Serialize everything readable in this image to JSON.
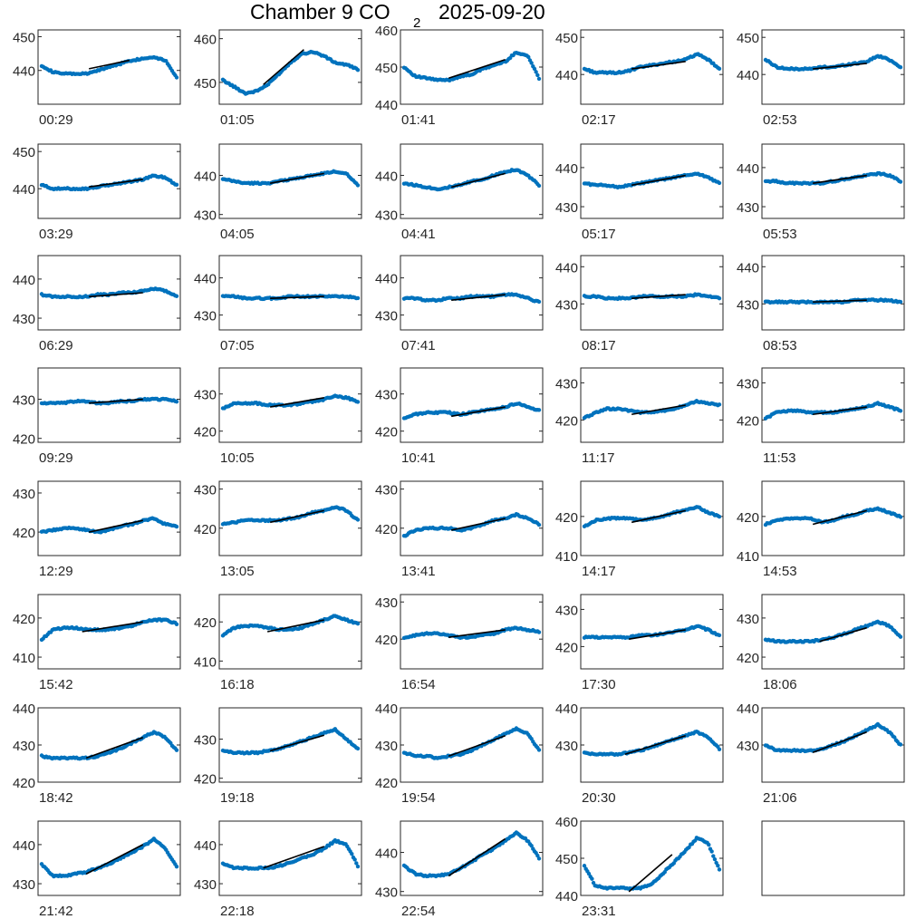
{
  "title": {
    "main": "Chamber 9 CO",
    "sub": "2",
    "date": "2025-09-20"
  },
  "colors": {
    "points": "#0072BD",
    "fit": "#000000",
    "axes": "#262626"
  },
  "chart_data": [
    {
      "type": "scatter",
      "label": "00:29",
      "ylim": [
        430,
        452
      ],
      "yticks": [
        440,
        450
      ],
      "shape": [
        441.5,
        439.5,
        439,
        439,
        439,
        440,
        441,
        442,
        443,
        443.5,
        444,
        443,
        438
      ],
      "fit": [
        [
          0.35,
          440.5
        ],
        [
          0.65,
          443
        ]
      ]
    },
    {
      "type": "scatter",
      "label": "01:05",
      "ylim": [
        445,
        462
      ],
      "yticks": [
        450,
        460
      ],
      "shape": [
        450.5,
        449,
        447.5,
        448,
        449.5,
        452,
        454.5,
        456.5,
        457,
        456,
        454.5,
        454,
        453
      ],
      "fit": [
        [
          0.3,
          449.5
        ],
        [
          0.6,
          457.5
        ]
      ]
    },
    {
      "type": "scatter",
      "label": "01:41",
      "ylim": [
        440,
        460
      ],
      "yticks": [
        440,
        450,
        460
      ],
      "shape": [
        450,
        447.5,
        447,
        446.5,
        446.5,
        447.5,
        448,
        449.5,
        450.5,
        451.5,
        454,
        453,
        447
      ],
      "fit": [
        [
          0.33,
          447
        ],
        [
          0.75,
          452
        ]
      ]
    },
    {
      "type": "scatter",
      "label": "02:17",
      "ylim": [
        432,
        452
      ],
      "yticks": [
        440,
        450
      ],
      "shape": [
        441.5,
        440.5,
        440.5,
        440.5,
        441,
        442,
        442.5,
        443,
        443.5,
        444,
        445.5,
        444,
        441.5
      ],
      "fit": [
        [
          0.35,
          441.5
        ],
        [
          0.75,
          443.5
        ]
      ]
    },
    {
      "type": "scatter",
      "label": "02:53",
      "ylim": [
        432,
        452
      ],
      "yticks": [
        440,
        450
      ],
      "shape": [
        444,
        442,
        441.5,
        441.5,
        441.5,
        442,
        442,
        442.5,
        443,
        443.5,
        445,
        444,
        442
      ],
      "fit": [
        [
          0.35,
          441.5
        ],
        [
          0.75,
          443
        ]
      ]
    },
    {
      "type": "scatter",
      "label": "03:29",
      "ylim": [
        432,
        452
      ],
      "yticks": [
        440,
        450
      ],
      "shape": [
        441,
        440,
        440,
        440,
        440,
        440.5,
        441,
        441.5,
        442,
        442.5,
        443.5,
        443,
        441
      ],
      "fit": [
        [
          0.35,
          440.5
        ],
        [
          0.75,
          442.5
        ]
      ]
    },
    {
      "type": "scatter",
      "label": "04:05",
      "ylim": [
        429,
        448
      ],
      "yticks": [
        430,
        440
      ],
      "shape": [
        439,
        438.5,
        438,
        438,
        438,
        438.5,
        439,
        439.5,
        440,
        440.5,
        441,
        440.5,
        437.5
      ],
      "fit": [
        [
          0.35,
          438
        ],
        [
          0.75,
          440.5
        ]
      ]
    },
    {
      "type": "scatter",
      "label": "04:41",
      "ylim": [
        429,
        448
      ],
      "yticks": [
        430,
        440
      ],
      "shape": [
        438,
        437.5,
        437,
        436.5,
        437,
        437.5,
        438.5,
        439,
        440,
        441,
        441.5,
        440,
        437.5
      ],
      "fit": [
        [
          0.35,
          437
        ],
        [
          0.75,
          440.5
        ]
      ]
    },
    {
      "type": "scatter",
      "label": "05:17",
      "ylim": [
        427,
        446
      ],
      "yticks": [
        430,
        440
      ],
      "shape": [
        436,
        435.5,
        435.5,
        435,
        435.5,
        436,
        436.5,
        437,
        437.5,
        438,
        438.5,
        437.5,
        436
      ],
      "fit": [
        [
          0.35,
          435.5
        ],
        [
          0.75,
          438
        ]
      ]
    },
    {
      "type": "scatter",
      "label": "05:53",
      "ylim": [
        427,
        446
      ],
      "yticks": [
        430,
        440
      ],
      "shape": [
        436.5,
        436.5,
        436,
        436,
        436,
        436,
        436.5,
        437,
        437.5,
        438,
        438.5,
        438,
        436.5
      ],
      "fit": [
        [
          0.35,
          436
        ],
        [
          0.75,
          438
        ]
      ]
    },
    {
      "type": "scatter",
      "label": "06:29",
      "ylim": [
        427,
        446
      ],
      "yticks": [
        430,
        440
      ],
      "shape": [
        436,
        435.5,
        435.5,
        435.5,
        435.5,
        436,
        436,
        436.5,
        436.5,
        437,
        437.5,
        437,
        435.5
      ],
      "fit": [
        [
          0.35,
          435.5
        ],
        [
          0.75,
          436.5
        ]
      ]
    },
    {
      "type": "scatter",
      "label": "07:05",
      "ylim": [
        426,
        446
      ],
      "yticks": [
        430,
        440
      ],
      "shape": [
        435,
        435,
        434.5,
        434.5,
        434.5,
        434.5,
        435,
        435,
        435,
        435,
        435,
        435,
        434.5
      ],
      "fit": [
        [
          0.35,
          434.5
        ],
        [
          0.75,
          435
        ]
      ]
    },
    {
      "type": "scatter",
      "label": "07:41",
      "ylim": [
        426,
        446
      ],
      "yticks": [
        430,
        440
      ],
      "shape": [
        434.5,
        434.5,
        434,
        434,
        434.5,
        434.5,
        435,
        435,
        435,
        435.5,
        435.5,
        434.5,
        433.5
      ],
      "fit": [
        [
          0.35,
          434
        ],
        [
          0.75,
          435.5
        ]
      ]
    },
    {
      "type": "scatter",
      "label": "08:17",
      "ylim": [
        423,
        443
      ],
      "yticks": [
        430,
        440
      ],
      "shape": [
        432,
        432,
        431.5,
        431.5,
        431.5,
        432,
        432,
        432,
        432,
        432,
        432.5,
        432,
        431.5
      ],
      "fit": [
        [
          0.35,
          431.5
        ],
        [
          0.75,
          432.5
        ]
      ]
    },
    {
      "type": "scatter",
      "label": "08:53",
      "ylim": [
        423,
        443
      ],
      "yticks": [
        430,
        440
      ],
      "shape": [
        430.5,
        430.5,
        430.5,
        430.5,
        430.5,
        430.5,
        430.5,
        430.5,
        431,
        431,
        431,
        431,
        430.5
      ],
      "fit": [
        [
          0.35,
          430.5
        ],
        [
          0.75,
          431
        ]
      ]
    },
    {
      "type": "scatter",
      "label": "09:29",
      "ylim": [
        419,
        438
      ],
      "yticks": [
        420,
        430
      ],
      "shape": [
        429,
        429,
        429,
        429.5,
        429.5,
        429,
        429,
        429.5,
        429.5,
        430,
        430,
        430,
        429.5
      ],
      "fit": [
        [
          0.35,
          429
        ],
        [
          0.75,
          430
        ]
      ]
    },
    {
      "type": "scatter",
      "label": "10:05",
      "ylim": [
        417,
        437
      ],
      "yticks": [
        420,
        430
      ],
      "shape": [
        426,
        427.5,
        427.5,
        427.5,
        427,
        427,
        427,
        427.5,
        428,
        428.5,
        429.5,
        429,
        428
      ],
      "fit": [
        [
          0.35,
          426.5
        ],
        [
          0.75,
          429
        ]
      ]
    },
    {
      "type": "scatter",
      "label": "10:41",
      "ylim": [
        417,
        437
      ],
      "yticks": [
        420,
        430
      ],
      "shape": [
        423.5,
        424.5,
        425,
        425,
        425,
        424.5,
        425,
        425.5,
        426,
        426.5,
        427.5,
        426.5,
        425.5
      ],
      "fit": [
        [
          0.35,
          424
        ],
        [
          0.75,
          426.5
        ]
      ]
    },
    {
      "type": "scatter",
      "label": "11:17",
      "ylim": [
        414,
        434
      ],
      "yticks": [
        420,
        430
      ],
      "shape": [
        420.5,
        422,
        423,
        423,
        422.5,
        422,
        422,
        422.5,
        423,
        424,
        425,
        424.5,
        424
      ],
      "fit": [
        [
          0.35,
          421.5
        ],
        [
          0.75,
          424
        ]
      ]
    },
    {
      "type": "scatter",
      "label": "11:53",
      "ylim": [
        414,
        434
      ],
      "yticks": [
        420,
        430
      ],
      "shape": [
        420.5,
        422,
        422.5,
        422.5,
        422,
        422,
        422,
        422.5,
        423,
        423.5,
        424.5,
        423.5,
        422.5
      ],
      "fit": [
        [
          0.35,
          421.5
        ],
        [
          0.75,
          423.5
        ]
      ]
    },
    {
      "type": "scatter",
      "label": "12:29",
      "ylim": [
        414,
        433
      ],
      "yticks": [
        420,
        430
      ],
      "shape": [
        420,
        420.5,
        421,
        421,
        420.5,
        420,
        420.5,
        421.5,
        422,
        423,
        423.5,
        422,
        421.5
      ],
      "fit": [
        [
          0.35,
          420
        ],
        [
          0.75,
          423
        ]
      ]
    },
    {
      "type": "scatter",
      "label": "13:05",
      "ylim": [
        413,
        432
      ],
      "yticks": [
        420,
        430
      ],
      "shape": [
        421,
        421.5,
        422,
        422,
        422,
        422,
        422.5,
        423,
        424,
        424.5,
        425.5,
        424.5,
        422
      ],
      "fit": [
        [
          0.35,
          421.5
        ],
        [
          0.75,
          424.5
        ]
      ]
    },
    {
      "type": "scatter",
      "label": "13:41",
      "ylim": [
        413,
        432
      ],
      "yticks": [
        420,
        430
      ],
      "shape": [
        418,
        419.5,
        420,
        420,
        420,
        419.5,
        420,
        421,
        422,
        422.5,
        423.5,
        422.5,
        421
      ],
      "fit": [
        [
          0.35,
          419.5
        ],
        [
          0.75,
          422.5
        ]
      ]
    },
    {
      "type": "scatter",
      "label": "14:17",
      "ylim": [
        410,
        429
      ],
      "yticks": [
        410,
        420
      ],
      "shape": [
        417.5,
        419,
        419.5,
        419.5,
        419.5,
        419,
        419.5,
        420,
        421,
        421.5,
        422.5,
        421,
        420
      ],
      "fit": [
        [
          0.35,
          418.5
        ],
        [
          0.75,
          421.5
        ]
      ]
    },
    {
      "type": "scatter",
      "label": "14:53",
      "ylim": [
        410,
        429
      ],
      "yticks": [
        410,
        420
      ],
      "shape": [
        418,
        419,
        419.5,
        419.5,
        419.5,
        418.5,
        419,
        420,
        420.5,
        421.5,
        422,
        421,
        420
      ],
      "fit": [
        [
          0.35,
          418
        ],
        [
          0.75,
          421.5
        ]
      ]
    },
    {
      "type": "scatter",
      "label": "15:42",
      "ylim": [
        407,
        426
      ],
      "yticks": [
        410,
        420
      ],
      "shape": [
        414.5,
        417,
        417.5,
        417.5,
        417,
        417,
        417,
        417.5,
        418,
        419,
        419.5,
        419.5,
        418.5
      ],
      "fit": [
        [
          0.3,
          416.5
        ],
        [
          0.75,
          419
        ]
      ]
    },
    {
      "type": "scatter",
      "label": "16:18",
      "ylim": [
        408,
        427
      ],
      "yticks": [
        410,
        420
      ],
      "shape": [
        416.5,
        418.5,
        419,
        419,
        418.5,
        418,
        418,
        418.5,
        419.5,
        420.5,
        421.5,
        420.5,
        419.5
      ],
      "fit": [
        [
          0.33,
          417.5
        ],
        [
          0.75,
          420.5
        ]
      ]
    },
    {
      "type": "scatter",
      "label": "16:54",
      "ylim": [
        412,
        432
      ],
      "yticks": [
        420,
        430
      ],
      "shape": [
        420.5,
        421,
        421.5,
        421.5,
        421,
        420.5,
        420.5,
        421,
        421.5,
        422.5,
        423,
        422.5,
        422
      ],
      "fit": [
        [
          0.33,
          420.5
        ],
        [
          0.75,
          422.5
        ]
      ]
    },
    {
      "type": "scatter",
      "label": "17:30",
      "ylim": [
        414,
        434
      ],
      "yticks": [
        420,
        430
      ],
      "shape": [
        422.5,
        422.5,
        422.5,
        422.5,
        422.5,
        423,
        423,
        423.5,
        424,
        424.5,
        425.5,
        424.5,
        423
      ],
      "fit": [
        [
          0.33,
          422
        ],
        [
          0.75,
          424.5
        ]
      ]
    },
    {
      "type": "scatter",
      "label": "18:06",
      "ylim": [
        417,
        436
      ],
      "yticks": [
        420,
        430
      ],
      "shape": [
        424.5,
        424,
        424,
        424,
        424,
        424.5,
        425,
        426,
        427,
        428,
        429,
        428,
        425
      ],
      "fit": [
        [
          0.4,
          424
        ],
        [
          0.75,
          427.5
        ]
      ]
    },
    {
      "type": "scatter",
      "label": "18:42",
      "ylim": [
        420,
        440
      ],
      "yticks": [
        420,
        430,
        440
      ],
      "shape": [
        427,
        426.5,
        426.5,
        426.5,
        426.5,
        427,
        428,
        429,
        430.5,
        432,
        433.5,
        432,
        428.5
      ],
      "fit": [
        [
          0.33,
          426.5
        ],
        [
          0.75,
          432
        ]
      ]
    },
    {
      "type": "scatter",
      "label": "19:18",
      "ylim": [
        419,
        438
      ],
      "yticks": [
        420,
        430
      ],
      "shape": [
        427,
        426.5,
        426.5,
        426.5,
        427,
        427.5,
        428.5,
        429.5,
        430.5,
        431.5,
        432.5,
        430,
        427.5
      ],
      "fit": [
        [
          0.35,
          427
        ],
        [
          0.75,
          431
        ]
      ]
    },
    {
      "type": "scatter",
      "label": "19:54",
      "ylim": [
        420,
        440
      ],
      "yticks": [
        420,
        430,
        440
      ],
      "shape": [
        428,
        427,
        427,
        426.5,
        427,
        427.5,
        428.5,
        430,
        431.5,
        433,
        434.5,
        433,
        428.5
      ],
      "fit": [
        [
          0.33,
          427
        ],
        [
          0.75,
          432.5
        ]
      ]
    },
    {
      "type": "scatter",
      "label": "20:30",
      "ylim": [
        420,
        440
      ],
      "yticks": [
        430,
        440
      ],
      "shape": [
        428,
        427.5,
        427.5,
        427.5,
        428,
        428.5,
        429.5,
        430.5,
        431.5,
        432.5,
        433.5,
        432,
        429
      ],
      "fit": [
        [
          0.3,
          427.5
        ],
        [
          0.75,
          432.5
        ]
      ]
    },
    {
      "type": "scatter",
      "label": "21:06",
      "ylim": [
        420,
        440
      ],
      "yticks": [
        430,
        440
      ],
      "shape": [
        430,
        428.5,
        428.5,
        428.5,
        428.5,
        429,
        430,
        431,
        432.5,
        434,
        435.5,
        433.5,
        430
      ],
      "fit": [
        [
          0.35,
          428
        ],
        [
          0.75,
          433.5
        ]
      ]
    },
    {
      "type": "scatter",
      "label": "21:42",
      "ylim": [
        427,
        446
      ],
      "yticks": [
        430,
        440
      ],
      "shape": [
        435,
        432,
        432,
        432.5,
        433,
        434,
        435,
        436.5,
        438,
        439.5,
        441.5,
        439,
        434.5
      ],
      "fit": [
        [
          0.33,
          432.5
        ],
        [
          0.75,
          440
        ]
      ]
    },
    {
      "type": "scatter",
      "label": "22:18",
      "ylim": [
        427,
        446
      ],
      "yticks": [
        430,
        440
      ],
      "shape": [
        435,
        434,
        434,
        434,
        434,
        434.5,
        435.5,
        436.5,
        437.5,
        439,
        441,
        440,
        434.5
      ],
      "fit": [
        [
          0.3,
          434
        ],
        [
          0.75,
          439.5
        ]
      ]
    },
    {
      "type": "scatter",
      "label": "22:54",
      "ylim": [
        429,
        448
      ],
      "yticks": [
        430,
        440
      ],
      "shape": [
        436.5,
        434.5,
        434,
        434,
        434.5,
        436,
        437.5,
        439.5,
        441,
        443,
        445,
        443,
        438.5
      ],
      "fit": [
        [
          0.33,
          434
        ],
        [
          0.75,
          443.5
        ]
      ]
    },
    {
      "type": "scatter",
      "label": "23:31",
      "ylim": [
        440,
        460
      ],
      "yticks": [
        440,
        450,
        460
      ],
      "shape": [
        448,
        442.5,
        442,
        442,
        442,
        442,
        443,
        446,
        449,
        452,
        455.5,
        454,
        447
      ],
      "fit": [
        [
          0.33,
          441
        ],
        [
          0.65,
          451
        ]
      ]
    },
    {
      "type": "scatter",
      "label": "",
      "ylim": [
        0,
        1
      ],
      "yticks": [],
      "shape": [],
      "fit": [],
      "empty": true
    }
  ]
}
